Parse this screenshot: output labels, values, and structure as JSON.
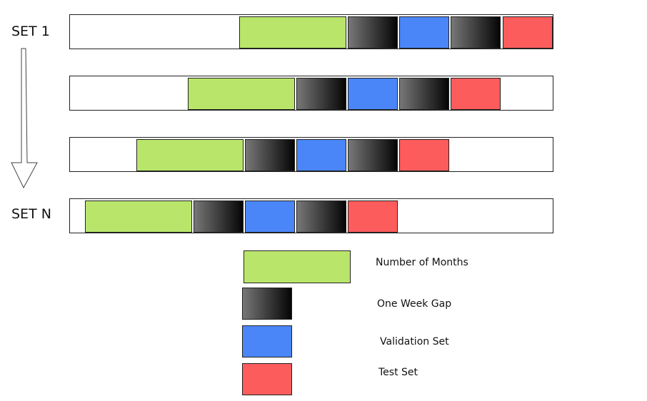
{
  "set_labels": {
    "first": "SET 1",
    "last": "SET N"
  },
  "colors": {
    "train": "#b9e66a",
    "gap_start": "#777777",
    "gap_end": "#050505",
    "validation": "#4a86f7",
    "test": "#fd5c5c",
    "border": "#222222"
  },
  "rows": [
    {
      "set": "SET 1",
      "segments": [
        "train",
        "gap",
        "validation",
        "gap",
        "test"
      ]
    },
    {
      "set": "",
      "segments": [
        "train",
        "gap",
        "validation",
        "gap",
        "test"
      ]
    },
    {
      "set": "",
      "segments": [
        "train",
        "gap",
        "validation",
        "gap",
        "test"
      ]
    },
    {
      "set": "SET N",
      "segments": [
        "train",
        "gap",
        "validation",
        "gap",
        "test"
      ]
    }
  ],
  "legend": {
    "train": "Number of Months",
    "gap": "One Week Gap",
    "validation": "Validation Set",
    "test": "Test Set"
  },
  "icons": {
    "progression": "down-arrow-icon"
  }
}
